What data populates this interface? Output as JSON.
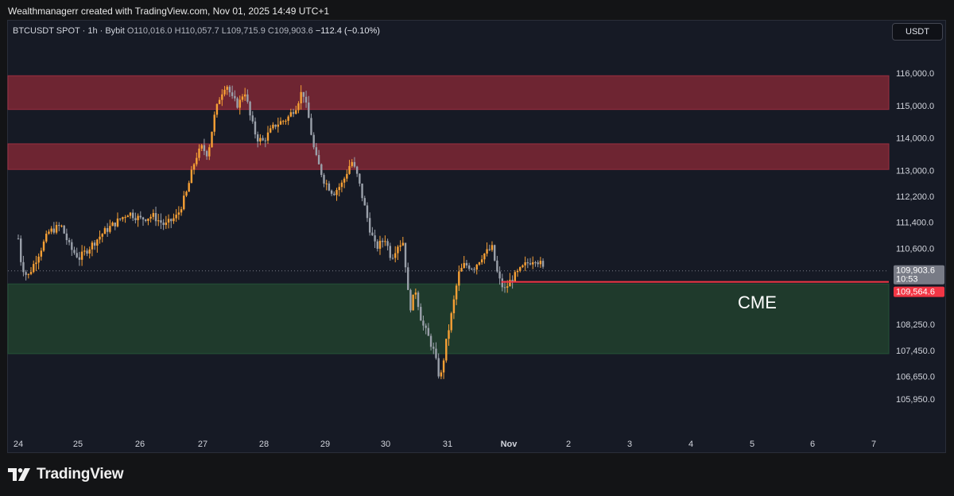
{
  "header": {
    "attribution": "Wealthmanagerr created with TradingView.com, Nov 01, 2025 14:49 UTC+1"
  },
  "symbol_bar": {
    "symbol": "BTCUSDT SPOT · 1h · Bybit",
    "o_label": "O",
    "o_value": "110,016.0",
    "h_label": "H",
    "h_value": "110,057.7",
    "l_label": "L",
    "l_value": "109,715.9",
    "c_label": "C",
    "c_value": "109,903.6",
    "change": "−112.4 (−0.10%)"
  },
  "currency_button": "USDT",
  "brand": "TradingView",
  "colors": {
    "background": "#161a25",
    "resistance_zone": "#6e2532",
    "support_zone": "#1f3a2c",
    "candle_orange": "#f7a035",
    "candle_gray": "#9aa0aa",
    "cme_line": "#f23645",
    "price_label_bg": "#787b86"
  },
  "chart_data": {
    "type": "candlestick",
    "x_ticks": [
      "24",
      "25",
      "26",
      "27",
      "28",
      "29",
      "30",
      "31",
      "Nov",
      "2",
      "3",
      "4",
      "5",
      "6",
      "7"
    ],
    "y_ticks": [
      "116,000.0",
      "115,000.0",
      "114,000.0",
      "113,000.0",
      "112,200.0",
      "111,400.0",
      "110,600.0",
      "109,900.0",
      "108,250.0",
      "107,450.0",
      "106,650.0",
      "105,950.0"
    ],
    "y_tick_values": [
      116000,
      115000,
      114000,
      113000,
      112200,
      111400,
      110600,
      109900,
      108250,
      107450,
      106650,
      105950
    ],
    "current_price": {
      "value": 109903.6,
      "label": "109,903.6",
      "countdown": "10:53"
    },
    "cme_level": {
      "value": 109564.6,
      "label": "109,564.6",
      "annotation": "CME"
    },
    "zones": [
      {
        "kind": "resistance",
        "from": 114880,
        "to": 115920
      },
      {
        "kind": "resistance",
        "from": 113030,
        "to": 113820
      },
      {
        "kind": "support",
        "from": 107350,
        "to": 109500
      }
    ],
    "price_path": [
      [
        24.0,
        110900
      ],
      [
        24.05,
        110100
      ],
      [
        24.15,
        109700
      ],
      [
        24.3,
        110300
      ],
      [
        24.5,
        111100
      ],
      [
        24.7,
        111300
      ],
      [
        24.85,
        110600
      ],
      [
        25.0,
        110300
      ],
      [
        25.2,
        110700
      ],
      [
        25.4,
        111100
      ],
      [
        25.6,
        111400
      ],
      [
        25.8,
        111700
      ],
      [
        26.0,
        111500
      ],
      [
        26.2,
        111600
      ],
      [
        26.4,
        111300
      ],
      [
        26.6,
        111600
      ],
      [
        26.75,
        112300
      ],
      [
        26.9,
        113400
      ],
      [
        27.0,
        113700
      ],
      [
        27.1,
        113500
      ],
      [
        27.2,
        114600
      ],
      [
        27.3,
        115300
      ],
      [
        27.4,
        115700
      ],
      [
        27.5,
        115200
      ],
      [
        27.6,
        115000
      ],
      [
        27.7,
        115500
      ],
      [
        27.8,
        114600
      ],
      [
        27.9,
        114000
      ],
      [
        28.0,
        113900
      ],
      [
        28.2,
        114400
      ],
      [
        28.4,
        114600
      ],
      [
        28.55,
        115000
      ],
      [
        28.65,
        115500
      ],
      [
        28.75,
        114600
      ],
      [
        28.85,
        113500
      ],
      [
        29.0,
        112700
      ],
      [
        29.15,
        112300
      ],
      [
        29.3,
        112600
      ],
      [
        29.45,
        113300
      ],
      [
        29.55,
        112800
      ],
      [
        29.65,
        112000
      ],
      [
        29.75,
        111200
      ],
      [
        29.85,
        110600
      ],
      [
        30.0,
        110900
      ],
      [
        30.1,
        110300
      ],
      [
        30.2,
        110700
      ],
      [
        30.3,
        110800
      ],
      [
        30.4,
        108700
      ],
      [
        30.5,
        109300
      ],
      [
        30.6,
        108300
      ],
      [
        30.7,
        107900
      ],
      [
        30.8,
        107400
      ],
      [
        30.9,
        106500
      ],
      [
        31.0,
        107700
      ],
      [
        31.1,
        108700
      ],
      [
        31.2,
        109800
      ],
      [
        31.3,
        110100
      ],
      [
        31.45,
        110000
      ],
      [
        31.6,
        110400
      ],
      [
        31.75,
        110600
      ],
      [
        31.85,
        109700
      ],
      [
        31.95,
        109300
      ],
      [
        32.05,
        109600
      ],
      [
        32.2,
        109900
      ],
      [
        32.3,
        110100
      ],
      [
        32.45,
        110300
      ],
      [
        32.55,
        110100
      ],
      [
        32.6,
        109900
      ]
    ]
  }
}
